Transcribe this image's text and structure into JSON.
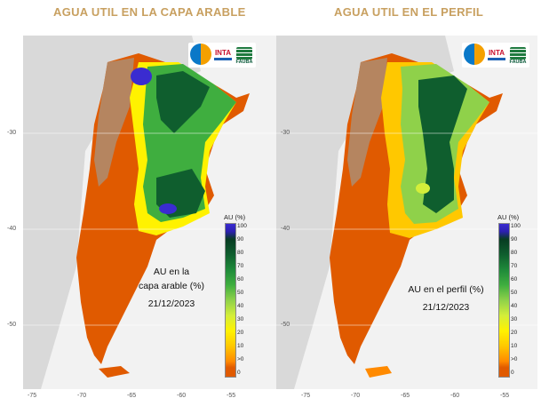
{
  "panels": [
    {
      "title": "AGUA UTIL EN LA CAPA ARABLE",
      "annotation_lines": [
        "AU en la",
        "capa arable (%)",
        "21/12/2023"
      ]
    },
    {
      "title": "AGUA UTIL EN EL PERFIL",
      "annotation_lines": [
        "AU en el perfil (%)",
        "21/12/2023"
      ]
    }
  ],
  "axis": {
    "y_ticks": [
      "-30",
      "-40",
      "-50"
    ],
    "x_ticks": [
      "-75",
      "-70",
      "-65",
      "-60",
      "-55"
    ]
  },
  "legend": {
    "title": "AU (%)",
    "ticks": [
      "100",
      "90",
      "80",
      "70",
      "60",
      "50",
      "40",
      "30",
      "20",
      "10",
      ">0",
      "0"
    ]
  },
  "logos": {
    "inta": "INTA",
    "fauba": "FAUBA"
  },
  "colors": {
    "title": "#c8a060",
    "dry": "#e05a00",
    "wet": "#0f5e2e",
    "saturated": "#3a2cd0",
    "background": "#f2f2f2"
  }
}
